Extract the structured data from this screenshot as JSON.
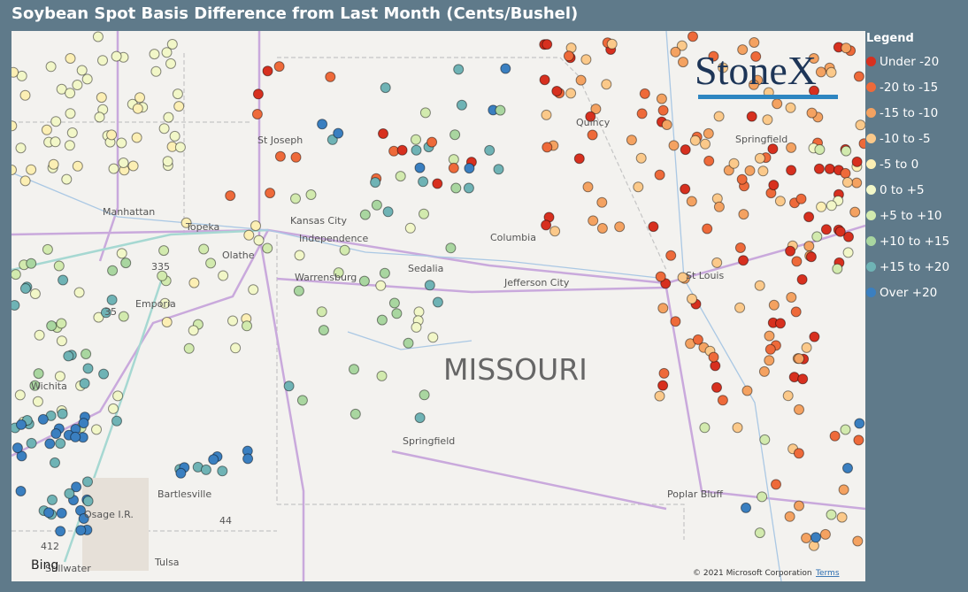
{
  "header": {
    "title": "Soybean Spot Basis Difference from Last Month (Cents/Bushel)"
  },
  "legend": {
    "title": "Legend",
    "items": [
      {
        "label": "Under -20",
        "color": "#d7301f"
      },
      {
        "label": "-20 to -15",
        "color": "#ee6a3a"
      },
      {
        "label": "-15 to -10",
        "color": "#f4a261"
      },
      {
        "label": "-10 to -5",
        "color": "#fbc98a"
      },
      {
        "label": "-5 to 0",
        "color": "#fcefb4"
      },
      {
        "label": "0 to +5",
        "color": "#f2f7c8"
      },
      {
        "label": "+5 to +10",
        "color": "#d2eaae"
      },
      {
        "label": "+10 to +15",
        "color": "#a9d6a0"
      },
      {
        "label": "+15 to +20",
        "color": "#6fb3b5"
      },
      {
        "label": "Over +20",
        "color": "#3a7fc0"
      }
    ]
  },
  "map": {
    "labels": [
      "St Joseph",
      "Manhattan",
      "Topeka",
      "Kansas City",
      "Independence",
      "Olathe",
      "Columbia",
      "Sedalia",
      "Warrensburg",
      "Jefferson City",
      "Emporia",
      "St Louis",
      "Quincy",
      "Springfield",
      "MISSOURI",
      "Wichita",
      "Springfield",
      "Bartlesville",
      "Osage I.R.",
      "Poplar Bluff",
      "Tulsa",
      "Stillwater",
      "335",
      "35",
      "44",
      "412"
    ],
    "logo": "StoneX",
    "bing": "Bing",
    "attribution": "© 2021 Microsoft Corporation",
    "terms": "Terms"
  }
}
